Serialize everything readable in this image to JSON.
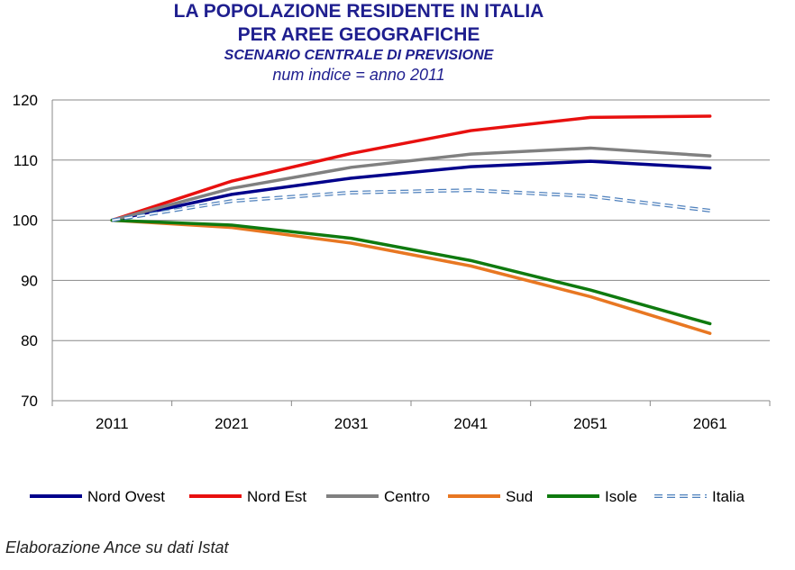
{
  "title": {
    "line1": "LA POPOLAZIONE RESIDENTE IN ITALIA",
    "line2": "PER AREE GEOGRAFICHE",
    "subtitle": "SCENARIO CENTRALE DI PREVISIONE",
    "subtitle2": "num indice = anno 2011"
  },
  "credit": "Elaborazione Ance su dati Istat",
  "chart_data": {
    "type": "line",
    "title": "LA POPOLAZIONE RESIDENTE IN ITALIA PER AREE GEOGRAFICHE",
    "subtitle": "SCENARIO CENTRALE DI PREVISIONE",
    "x": [
      "2011",
      "2021",
      "2031",
      "2041",
      "2051",
      "2061"
    ],
    "ylim": [
      70,
      120
    ],
    "yticks": [
      70,
      80,
      90,
      100,
      110,
      120
    ],
    "grid": true,
    "legend_position": "bottom",
    "series": [
      {
        "name": "Nord Ovest",
        "color": "#00008b",
        "dashed": false,
        "values": [
          100,
          104.3,
          107.0,
          108.9,
          109.8,
          108.7
        ]
      },
      {
        "name": "Nord Est",
        "color": "#e8100f",
        "dashed": false,
        "values": [
          100,
          106.5,
          111.1,
          114.9,
          117.1,
          117.3
        ]
      },
      {
        "name": "Centro",
        "color": "#808080",
        "dashed": false,
        "values": [
          100,
          105.3,
          108.8,
          111.0,
          112.0,
          110.7
        ]
      },
      {
        "name": "Sud",
        "color": "#e87722",
        "dashed": false,
        "values": [
          100,
          98.8,
          96.2,
          92.4,
          87.3,
          81.2
        ]
      },
      {
        "name": "Isole",
        "color": "#0f7a0f",
        "dashed": false,
        "values": [
          100,
          99.2,
          97.0,
          93.3,
          88.4,
          82.8
        ]
      },
      {
        "name": "Italia",
        "color": "#4f81bd",
        "dashed": true,
        "values": [
          100,
          103.2,
          104.6,
          105.0,
          104.0,
          101.6
        ]
      }
    ]
  }
}
